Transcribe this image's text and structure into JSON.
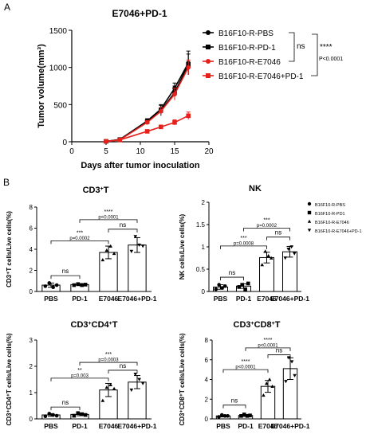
{
  "panels": [
    {
      "letter": "A"
    },
    {
      "letter": "B"
    }
  ],
  "chart_data": [
    {
      "type": "line",
      "title": "E7046+PD-1",
      "xlabel": "Days after tumor inoculation",
      "ylabel": "Tumor volume(mm³)",
      "xlim": [
        0,
        20
      ],
      "ylim": [
        0,
        1500
      ],
      "xticks": [
        0,
        5,
        10,
        15,
        20
      ],
      "yticks": [
        0,
        500,
        1000,
        1500
      ],
      "x": [
        5,
        7,
        11,
        13,
        15,
        17
      ],
      "series": [
        {
          "name": "B16F10-R-PBS",
          "color": "#000000",
          "marker": "circle",
          "values": [
            5,
            30,
            280,
            440,
            720,
            1060
          ],
          "err": [
            3,
            10,
            30,
            60,
            70,
            160
          ]
        },
        {
          "name": "B16F10-R-PD-1",
          "color": "#000000",
          "marker": "square",
          "values": [
            5,
            30,
            270,
            420,
            660,
            1040
          ],
          "err": [
            3,
            10,
            30,
            70,
            90,
            140
          ]
        },
        {
          "name": "B16F10-R-E7046",
          "color": "#e8201c",
          "marker": "circle",
          "values": [
            5,
            25,
            260,
            410,
            640,
            1000
          ],
          "err": [
            3,
            8,
            25,
            50,
            80,
            100
          ]
        },
        {
          "name": "B16F10-R-E7046+PD-1",
          "color": "#e8201c",
          "marker": "square",
          "values": [
            5,
            25,
            140,
            200,
            260,
            350
          ],
          "err": [
            3,
            8,
            20,
            25,
            35,
            50
          ]
        }
      ],
      "annotations": {
        "ns": "ns",
        "stars": "****",
        "p": "P<0.0001"
      }
    },
    {
      "type": "bar",
      "title_main": "CD3",
      "title_sup": "+",
      "title_end": "T",
      "ylabel": "CD3⁺T cells/Live cells(%)",
      "categories": [
        "PBS",
        "PD-1",
        "E7046",
        "E7046+PD-1"
      ],
      "values": [
        0.6,
        0.65,
        3.7,
        4.4
      ],
      "err": [
        0.2,
        0.1,
        0.6,
        0.7
      ],
      "points": [
        [
          0.5,
          0.8,
          0.4,
          0.6
        ],
        [
          0.6,
          0.7,
          0.6,
          0.65
        ],
        [
          3.0,
          3.9,
          4.3,
          3.6
        ],
        [
          3.8,
          5.2,
          4.4,
          4.3
        ]
      ],
      "ylim": [
        0,
        8
      ],
      "yticks": [
        0,
        2,
        4,
        6,
        8
      ],
      "comparisons": [
        {
          "a": 0,
          "b": 1,
          "y": 1.5,
          "label": "ns",
          "p": ""
        },
        {
          "a": 2,
          "b": 3,
          "y": 5.9,
          "label": "ns",
          "p": ""
        },
        {
          "a": 0,
          "b": 2,
          "y": 4.8,
          "label": "***",
          "p": "p=0.0002"
        },
        {
          "a": 1,
          "b": 3,
          "y": 6.8,
          "label": "****",
          "p": "p<0.0001"
        }
      ]
    },
    {
      "type": "bar",
      "title_main": "NK",
      "title_sup": "",
      "title_end": "",
      "ylabel": "NK cells/Live cells(%)",
      "categories": [
        "PBS",
        "PD-1",
        "E7046",
        "E7046+PD-1"
      ],
      "values": [
        0.1,
        0.12,
        0.76,
        0.89
      ],
      "err": [
        0.05,
        0.05,
        0.12,
        0.12
      ],
      "points": [
        [
          0.05,
          0.15,
          0.08,
          0.12
        ],
        [
          0.1,
          0.15,
          0.05,
          0.18
        ],
        [
          0.6,
          0.9,
          0.8,
          0.75
        ],
        [
          0.75,
          0.95,
          1.0,
          0.85
        ]
      ],
      "ylim": [
        0,
        2.0
      ],
      "yticks": [
        0,
        0.5,
        1.0,
        1.5,
        2.0
      ],
      "comparisons": [
        {
          "a": 0,
          "b": 1,
          "y": 0.32,
          "label": "ns",
          "p": ""
        },
        {
          "a": 2,
          "b": 3,
          "y": 1.22,
          "label": "ns",
          "p": ""
        },
        {
          "a": 0,
          "b": 2,
          "y": 1.02,
          "label": "***",
          "p": "p=0.0008"
        },
        {
          "a": 1,
          "b": 3,
          "y": 1.42,
          "label": "***",
          "p": "p=0.0002"
        }
      ]
    },
    {
      "type": "bar",
      "title_main": "CD3",
      "title_sup": "+",
      "title_end": "CD4",
      "title_sup2": "+",
      "title_end2": "T",
      "ylabel": "CD3⁺CD4⁺T cells/Live cells(%)",
      "categories": [
        "PBS",
        "PD-1",
        "E7046",
        "E7046+PD-1"
      ],
      "values": [
        0.15,
        0.17,
        1.1,
        1.4
      ],
      "err": [
        0.05,
        0.05,
        0.25,
        0.25
      ],
      "points": [
        [
          0.1,
          0.2,
          0.15,
          0.12
        ],
        [
          0.12,
          0.22,
          0.18,
          0.15
        ],
        [
          0.7,
          1.2,
          1.3,
          1.15
        ],
        [
          1.1,
          1.7,
          1.5,
          1.35
        ]
      ],
      "ylim": [
        0,
        3
      ],
      "yticks": [
        0,
        1,
        2,
        3
      ],
      "comparisons": [
        {
          "a": 0,
          "b": 1,
          "y": 0.45,
          "label": "ns",
          "p": ""
        },
        {
          "a": 2,
          "b": 3,
          "y": 1.85,
          "label": "ns",
          "p": ""
        },
        {
          "a": 0,
          "b": 2,
          "y": 1.55,
          "label": "**",
          "p": "p=0.003"
        },
        {
          "a": 1,
          "b": 3,
          "y": 2.15,
          "label": "***",
          "p": "p=0.0003"
        }
      ]
    },
    {
      "type": "bar",
      "title_main": "CD3",
      "title_sup": "+",
      "title_end": "CD8",
      "title_sup2": "+",
      "title_end2": "T",
      "ylabel": "CD3⁺CD8⁺T cells/Live cells(%)",
      "categories": [
        "PBS",
        "PD-1",
        "E7046",
        "E7046+PD-1"
      ],
      "values": [
        0.3,
        0.35,
        3.3,
        5.1
      ],
      "err": [
        0.1,
        0.1,
        0.6,
        1.1
      ],
      "points": [
        [
          0.2,
          0.4,
          0.3,
          0.3
        ],
        [
          0.3,
          0.45,
          0.3,
          0.35
        ],
        [
          2.4,
          3.6,
          4.0,
          3.3
        ],
        [
          3.8,
          6.2,
          5.8,
          4.4
        ]
      ],
      "ylim": [
        0,
        8
      ],
      "yticks": [
        0,
        2,
        4,
        6,
        8
      ],
      "comparisons": [
        {
          "a": 0,
          "b": 1,
          "y": 1.4,
          "label": "ns",
          "p": ""
        },
        {
          "a": 2,
          "b": 3,
          "y": 6.5,
          "label": "ns",
          "p": ""
        },
        {
          "a": 0,
          "b": 2,
          "y": 5.0,
          "label": "****",
          "p": "p<0.0001"
        },
        {
          "a": 1,
          "b": 3,
          "y": 7.2,
          "label": "****",
          "p": "p<0.0001"
        }
      ]
    }
  ],
  "legend_b": [
    {
      "name": "B16F10-R-PBS",
      "marker": "circle"
    },
    {
      "name": "B16F10-R-PD1",
      "marker": "square"
    },
    {
      "name": "B16F10-R-E7046",
      "marker": "triangle"
    },
    {
      "name": "B16F10-R-E7046+PD-1",
      "marker": "triangle-down"
    }
  ]
}
